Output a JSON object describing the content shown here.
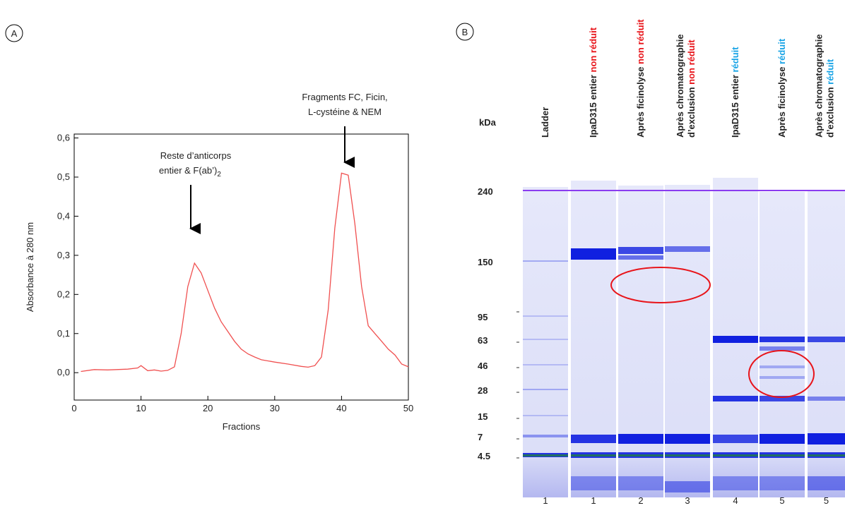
{
  "panels": [
    "A",
    "B"
  ],
  "chart_data": {
    "type": "line",
    "xlabel": "Fractions",
    "ylabel": "Absorbance à 280 nm",
    "color": "#f05050",
    "x": [
      1,
      3,
      5,
      8,
      9.5,
      10,
      11,
      12,
      13,
      14,
      15,
      16,
      17,
      18,
      19,
      20,
      21,
      22,
      23,
      24,
      25,
      26,
      27,
      28,
      30,
      32,
      34,
      35,
      36,
      37,
      38,
      39,
      40,
      41,
      42,
      43,
      44,
      45,
      46,
      47,
      48,
      49,
      50
    ],
    "values": [
      0.003,
      0.008,
      0.007,
      0.009,
      0.012,
      0.018,
      0.005,
      0.007,
      0.004,
      0.006,
      0.015,
      0.1,
      0.22,
      0.28,
      0.255,
      0.21,
      0.165,
      0.13,
      0.105,
      0.08,
      0.06,
      0.048,
      0.04,
      0.033,
      0.027,
      0.022,
      0.016,
      0.014,
      0.018,
      0.04,
      0.16,
      0.37,
      0.51,
      0.505,
      0.38,
      0.22,
      0.12,
      0.1,
      0.08,
      0.06,
      0.045,
      0.022,
      0.015
    ],
    "xlim": [
      0,
      50
    ],
    "xticks": [
      0,
      10,
      20,
      30,
      40,
      50
    ],
    "ylim": [
      -0.07,
      0.61
    ],
    "yticks": [
      {
        "value": 0,
        "label": "0,0"
      },
      {
        "value": 0.1,
        "label": "0,1"
      },
      {
        "value": 0.2,
        "label": "0,2"
      },
      {
        "value": 0.3,
        "label": "0,3"
      },
      {
        "value": 0.4,
        "label": "0,4"
      },
      {
        "value": 0.5,
        "label": "0,5"
      },
      {
        "value": 0.6,
        "label": "0,6"
      }
    ],
    "annotations": [
      {
        "lines": [
          "Reste d’anticorps",
          "entier & F(ab’)"
        ],
        "sub": "2"
      },
      {
        "lines": [
          "Fragments FC, Ficin,",
          "L-cystéine & NEM"
        ]
      }
    ]
  },
  "gel": {
    "unit": "kDa",
    "markers": [
      "240",
      "150",
      "95",
      "63",
      "46",
      "28",
      "15",
      "7",
      "4.5"
    ],
    "lanes": [
      {
        "lines": [
          [
            "Ladder"
          ]
        ],
        "number": "1"
      },
      {
        "lines": [
          [
            "IpaD315 entier ",
            [
              "non réduit",
              "red"
            ]
          ]
        ],
        "number": "1"
      },
      {
        "lines": [
          [
            "Après ficinolyse ",
            [
              "non réduit",
              "red"
            ]
          ]
        ],
        "number": "2"
      },
      {
        "lines": [
          [
            "Après chromatographie"
          ],
          [
            "d’exclusion ",
            [
              "non réduit",
              "red"
            ]
          ]
        ],
        "number": "3"
      },
      {
        "lines": [
          [
            "IpaD315 entier ",
            [
              "réduit",
              "blue"
            ]
          ]
        ],
        "number": "4"
      },
      {
        "lines": [
          [
            "Après ficinolyse ",
            [
              "réduit",
              "blue"
            ]
          ]
        ],
        "number": "5"
      },
      {
        "lines": [
          [
            "Après chromatographie"
          ],
          [
            "d’exclusion ",
            [
              "réduit",
              "blue"
            ]
          ]
        ],
        "number": "5"
      }
    ]
  }
}
